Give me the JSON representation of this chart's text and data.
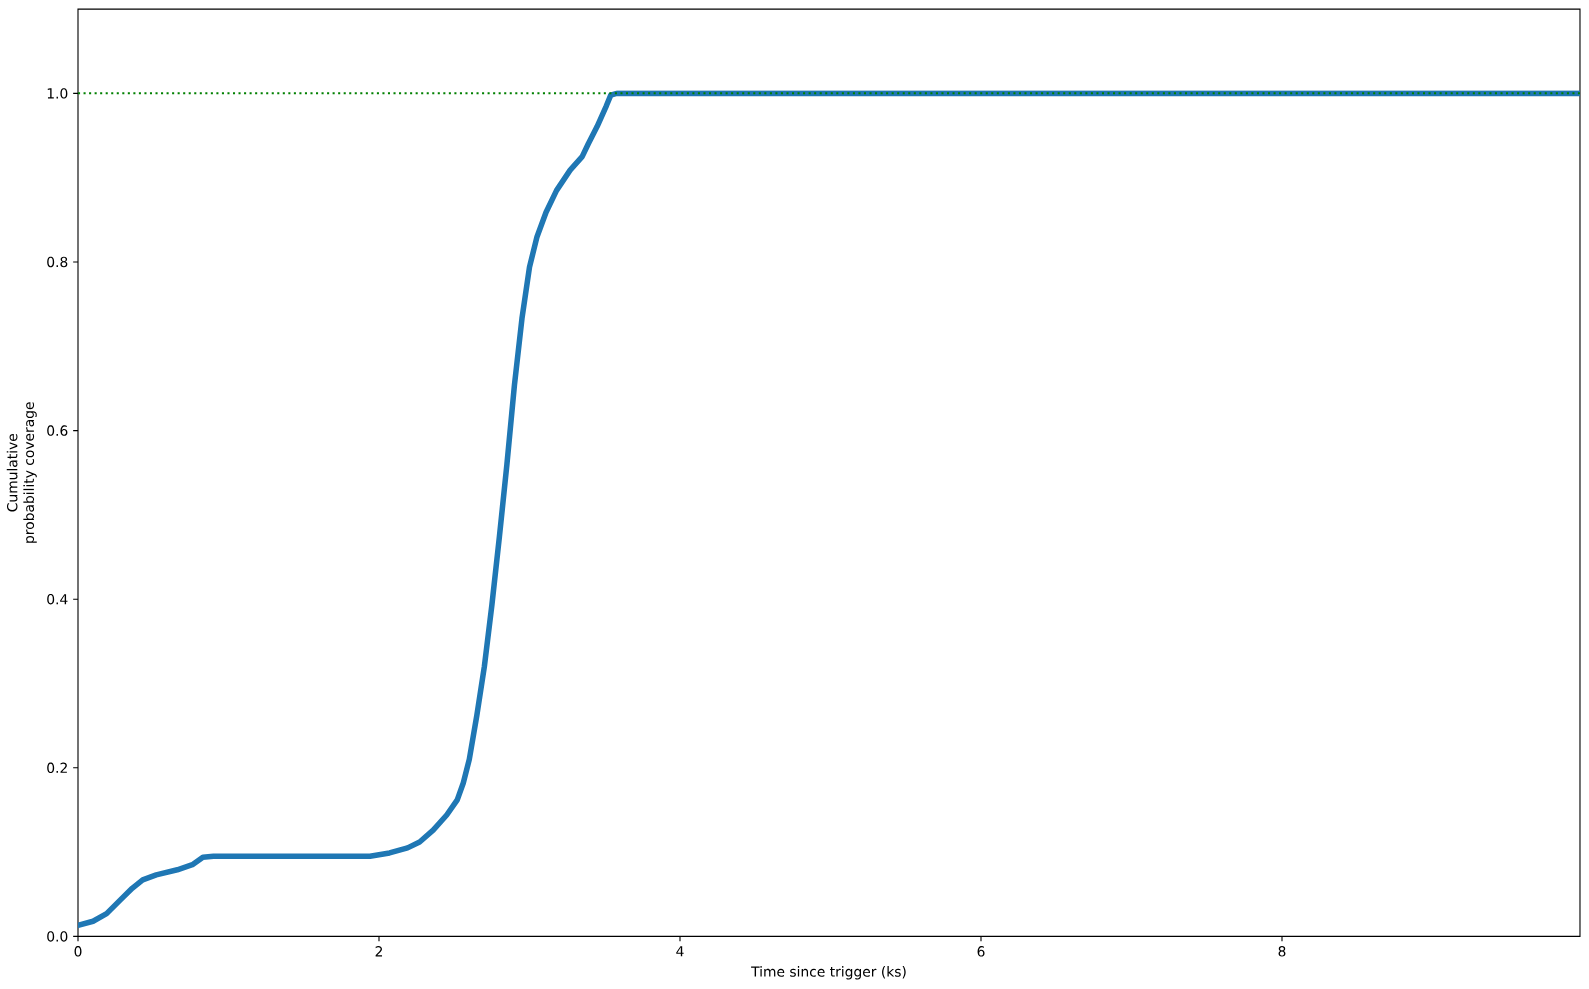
{
  "chart_data": {
    "type": "line",
    "xlabel": "Time since trigger (ks)",
    "ylabel": "Cumulative\nprobability coverage",
    "x": [
      0,
      0.1,
      0.19,
      0.28,
      0.36,
      0.43,
      0.52,
      0.66,
      0.76,
      0.83,
      0.9,
      1.94,
      2.07,
      2.19,
      2.27,
      2.36,
      2.45,
      2.52,
      2.56,
      2.6,
      2.65,
      2.7,
      2.75,
      2.8,
      2.85,
      2.9,
      2.95,
      3.0,
      3.05,
      3.11,
      3.18,
      3.27,
      3.35,
      3.39,
      3.45,
      3.51,
      3.54,
      3.58,
      9.98
    ],
    "series": [
      {
        "color": "#1f77b4",
        "values": [
          0.013,
          0.018,
          0.027,
          0.043,
          0.057,
          0.067,
          0.073,
          0.079,
          0.085,
          0.094,
          0.095,
          0.095,
          0.099,
          0.105,
          0.112,
          0.126,
          0.144,
          0.162,
          0.182,
          0.21,
          0.262,
          0.32,
          0.393,
          0.474,
          0.56,
          0.654,
          0.733,
          0.794,
          0.83,
          0.859,
          0.885,
          0.909,
          0.925,
          0.94,
          0.961,
          0.985,
          0.998,
          1.0,
          1.0
        ]
      }
    ],
    "xlim": [
      0,
      9.98
    ],
    "ylim": [
      0,
      1.1
    ],
    "xticks": [
      0,
      2,
      4,
      6,
      8
    ],
    "yticks": [
      {
        "value": 0,
        "label": "0.0"
      },
      0.2,
      0.4,
      0.6,
      0.8,
      {
        "value": 1,
        "label": "1.0"
      }
    ],
    "ref_lines": [
      {
        "axis": "y",
        "value": 1.0,
        "color": "#008000",
        "line_style": "dotted"
      }
    ],
    "marker": "none",
    "line_style": "solid"
  }
}
